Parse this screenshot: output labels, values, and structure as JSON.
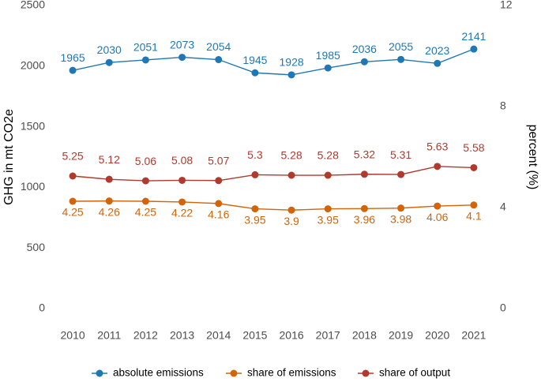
{
  "chart_data": {
    "type": "line",
    "categories": [
      "2010",
      "2011",
      "2012",
      "2013",
      "2014",
      "2015",
      "2016",
      "2017",
      "2018",
      "2019",
      "2020",
      "2021"
    ],
    "y_label": "GHG in mt CO2e",
    "y2_label": "percent (%)",
    "ylim": [
      0,
      2500
    ],
    "yticks": [
      0,
      500,
      1000,
      1500,
      2000,
      2500
    ],
    "y2lim": [
      0,
      12
    ],
    "y2ticks": [
      0,
      4,
      8,
      12
    ],
    "legend": "bottom",
    "series": [
      {
        "name": "absolute emissions",
        "color": "#1f78b4",
        "values": [
          1965,
          2030,
          2051,
          2073,
          2054,
          1945,
          1928,
          1985,
          2036,
          2055,
          2023,
          2141
        ]
      },
      {
        "name": "share of emissions",
        "color": "#d2640a",
        "axis": "y2",
        "values": [
          4.25,
          4.26,
          4.25,
          4.22,
          4.16,
          3.95,
          3.9,
          3.95,
          3.96,
          3.98,
          4.06,
          4.1
        ]
      },
      {
        "name": "share of output",
        "color": "#b03a2e",
        "axis": "y2",
        "values": [
          5.25,
          5.12,
          5.06,
          5.08,
          5.07,
          5.3,
          5.28,
          5.28,
          5.32,
          5.31,
          5.63,
          5.58
        ]
      }
    ]
  }
}
